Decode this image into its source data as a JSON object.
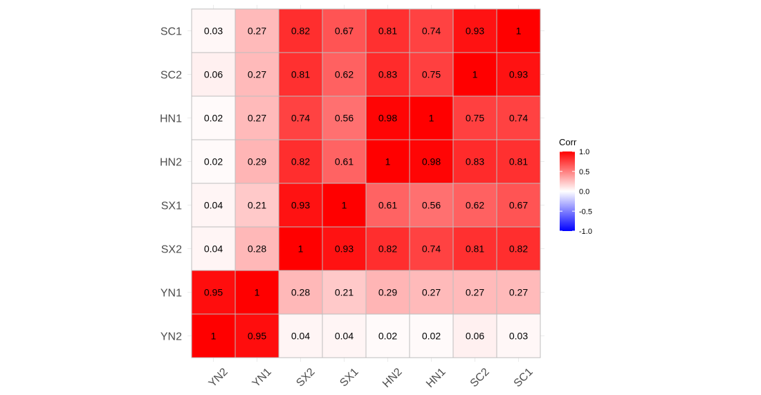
{
  "chart_data": {
    "type": "heatmap",
    "x_categories": [
      "YN2",
      "YN1",
      "SX2",
      "SX1",
      "HN2",
      "HN1",
      "SC2",
      "SC1"
    ],
    "y_categories": [
      "SC1",
      "SC2",
      "HN1",
      "HN2",
      "SX1",
      "SX2",
      "YN1",
      "YN2"
    ],
    "values": [
      [
        0.03,
        0.27,
        0.82,
        0.67,
        0.81,
        0.74,
        0.93,
        1
      ],
      [
        0.06,
        0.27,
        0.81,
        0.62,
        0.83,
        0.75,
        1,
        0.93
      ],
      [
        0.02,
        0.27,
        0.74,
        0.56,
        0.98,
        1,
        0.75,
        0.74
      ],
      [
        0.02,
        0.29,
        0.82,
        0.61,
        1,
        0.98,
        0.83,
        0.81
      ],
      [
        0.04,
        0.21,
        0.93,
        1,
        0.61,
        0.56,
        0.62,
        0.67
      ],
      [
        0.04,
        0.28,
        1,
        0.93,
        0.82,
        0.74,
        0.81,
        0.82
      ],
      [
        0.95,
        1,
        0.28,
        0.21,
        0.29,
        0.27,
        0.27,
        0.27
      ],
      [
        1,
        0.95,
        0.04,
        0.04,
        0.02,
        0.02,
        0.06,
        0.03
      ]
    ],
    "legend": {
      "title": "Corr",
      "ticks": [
        "1.0",
        "0.5",
        "0.0",
        "-0.5",
        "-1.0"
      ],
      "tick_values": [
        1,
        0.5,
        0,
        -0.5,
        -1
      ],
      "range": [
        -1,
        1
      ],
      "placement": "right"
    },
    "colors": {
      "low": "#0000ff",
      "mid": "#ffffff",
      "high": "#ff0000",
      "cell_border": "#bdbdbd",
      "grid": "#ebebeb",
      "axis_text": "#4d4d4d",
      "label_text": "#000000"
    },
    "grid": true
  }
}
